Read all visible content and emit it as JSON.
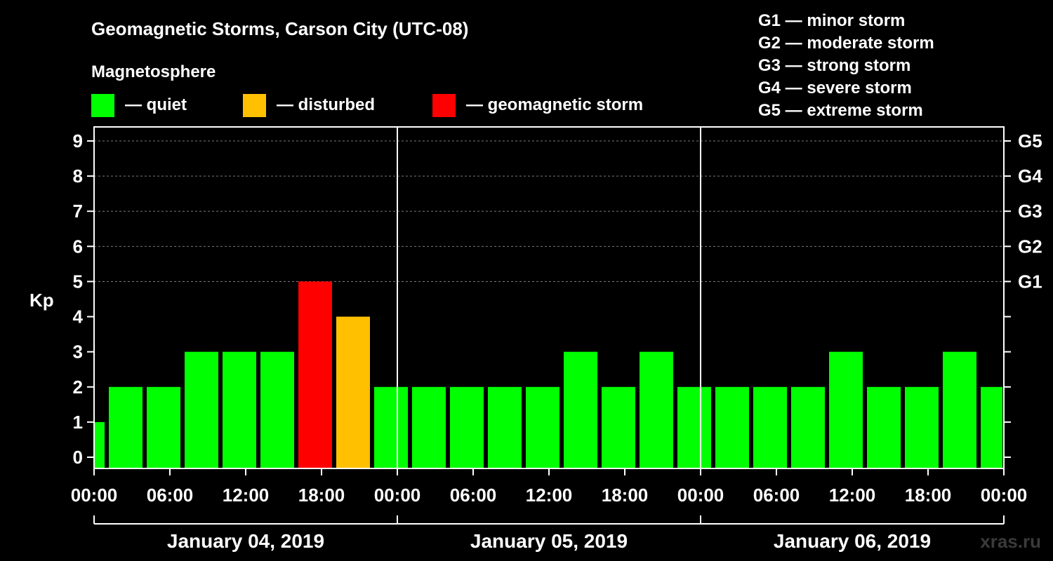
{
  "title": "Geomagnetic Storms, Carson City (UTC-08)",
  "legend": {
    "heading": "Magnetosphere",
    "items": [
      {
        "label": "— quiet",
        "color": "#00ff00"
      },
      {
        "label": "— disturbed",
        "color": "#ffc000"
      },
      {
        "label": "— geomagnetic storm",
        "color": "#ff0000"
      }
    ]
  },
  "storm_scale": [
    "G1 — minor storm",
    "G2 — moderate storm",
    "G3 — strong storm",
    "G4 — severe storm",
    "G5 — extreme storm"
  ],
  "watermark": "xras.ru",
  "chart_data": {
    "type": "bar",
    "title": "Geomagnetic Storms, Carson City (UTC-08)",
    "ylabel": "Kp",
    "ylim": [
      0,
      9
    ],
    "y_ticks": [
      "0",
      "1",
      "2",
      "3",
      "4",
      "5",
      "6",
      "7",
      "8",
      "9"
    ],
    "right_ticks": [
      {
        "kp": 5,
        "label": "G1"
      },
      {
        "kp": 6,
        "label": "G2"
      },
      {
        "kp": 7,
        "label": "G3"
      },
      {
        "kp": 8,
        "label": "G4"
      },
      {
        "kp": 9,
        "label": "G5"
      }
    ],
    "x_tick_labels": [
      "00:00",
      "06:00",
      "12:00",
      "18:00",
      "00:00",
      "06:00",
      "12:00",
      "18:00",
      "00:00",
      "06:00",
      "12:00",
      "18:00",
      "00:00"
    ],
    "x_range_hours": [
      0,
      72
    ],
    "bar_start_hours": [
      0,
      1,
      4,
      7,
      10,
      13,
      16,
      19,
      22,
      25,
      28,
      31,
      34,
      37,
      40,
      43,
      46,
      49,
      52,
      55,
      58,
      61,
      64,
      67,
      70
    ],
    "bar_end_hours": [
      1,
      4,
      7,
      10,
      13,
      16,
      19,
      22,
      25,
      28,
      31,
      34,
      37,
      40,
      43,
      46,
      49,
      52,
      55,
      58,
      61,
      64,
      67,
      70,
      72
    ],
    "values": [
      1,
      2,
      2,
      3,
      3,
      3,
      5,
      4,
      2,
      2,
      2,
      2,
      2,
      3,
      2,
      3,
      2,
      2,
      2,
      2,
      3,
      2,
      2,
      3,
      2
    ],
    "days": [
      "January 04, 2019",
      "January 05, 2019",
      "January 06, 2019"
    ],
    "colors": {
      "quiet": "#00ff00",
      "disturbed": "#ffc000",
      "storm": "#ff0000"
    },
    "grid": true
  }
}
